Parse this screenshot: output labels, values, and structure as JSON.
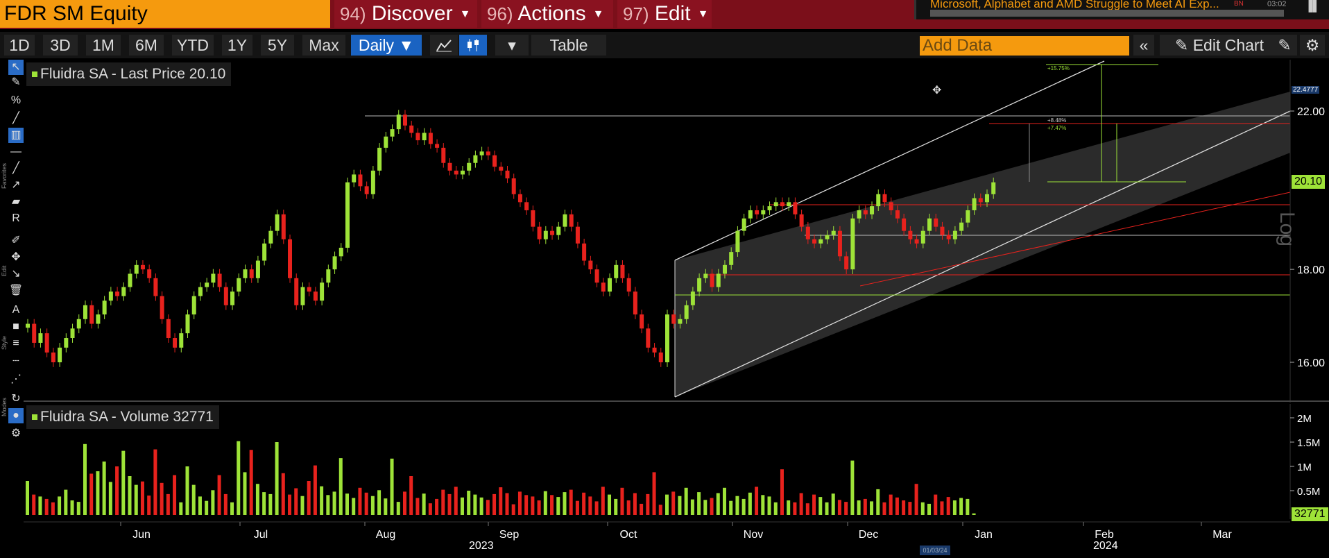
{
  "security": "FDR SM Equity",
  "menus": [
    {
      "num": "94)",
      "label": "Discover"
    },
    {
      "num": "96)",
      "label": "Actions"
    },
    {
      "num": "97)",
      "label": "Edit"
    }
  ],
  "news": {
    "headline": "Microsoft, Alphabet and AMD Struggle to Meet AI Exp...",
    "tag": "BN",
    "time": "03:02"
  },
  "toolbar": {
    "ranges": [
      "1D",
      "3D",
      "1M",
      "6M",
      "YTD",
      "1Y",
      "5Y",
      "Max"
    ],
    "frequency": "Daily ▼",
    "table_label": "Table",
    "add_data_placeholder": "Add Data",
    "edit_chart_label": "Edit Chart"
  },
  "side_labels": {
    "favorites": "Favorites",
    "edit": "Edit",
    "style": "Style",
    "modes": "Modes"
  },
  "price_panel": {
    "legend": "Fluidra SA - Last Price 20.10",
    "last": "20.10",
    "scale_label": "Log",
    "top_label": "22.4777",
    "channel_labels": [
      "+15.75%",
      "+8.48%",
      "+7.47%"
    ]
  },
  "volume_panel": {
    "legend": "Fluidra SA - Volume 32771",
    "last": "32771"
  },
  "x_axis": {
    "months": [
      "Jun",
      "Jul",
      "Aug",
      "Sep",
      "Oct",
      "Nov",
      "Dec",
      "Jan",
      "Feb",
      "Mar"
    ],
    "years": [
      "2023",
      "2024"
    ],
    "cursor_date": "01/03/24"
  },
  "colors": {
    "up": "#9ee338",
    "down": "#e8221d",
    "accent": "#f59a0e",
    "header": "#7b0f1a",
    "active": "#1a63c2"
  },
  "chart_data": {
    "type": "candlestick",
    "scale": "log",
    "y_ticks": [
      16.0,
      18.0,
      22.0
    ],
    "y_tick_labels": [
      "16.00",
      "18.00",
      "22.00"
    ],
    "volume_ticks": [
      500000,
      1000000,
      1500000,
      2000000
    ],
    "volume_tick_labels": [
      "0.5M",
      "1M",
      "1.5M",
      "2M"
    ],
    "series": [
      {
        "name": "Fluidra SA - Last Price",
        "close": [
          16.8,
          16.4,
          16.6,
          16.2,
          16.0,
          16.3,
          16.5,
          16.7,
          16.9,
          17.2,
          16.8,
          17.0,
          17.3,
          17.5,
          17.4,
          17.6,
          17.9,
          18.1,
          18.0,
          17.8,
          17.4,
          16.9,
          16.5,
          16.3,
          16.6,
          17.0,
          17.4,
          17.6,
          17.7,
          17.9,
          17.6,
          17.2,
          17.5,
          17.8,
          18.0,
          17.8,
          18.2,
          18.6,
          18.9,
          19.3,
          18.7,
          17.8,
          17.2,
          17.6,
          17.5,
          17.3,
          17.7,
          18.0,
          18.3,
          18.5,
          20.1,
          20.3,
          20.0,
          19.8,
          20.4,
          21.0,
          21.3,
          21.5,
          21.9,
          21.6,
          21.4,
          21.2,
          21.4,
          21.1,
          21.0,
          20.6,
          20.4,
          20.3,
          20.4,
          20.6,
          20.8,
          20.9,
          20.8,
          20.5,
          20.4,
          20.2,
          19.8,
          19.6,
          19.4,
          19.0,
          18.7,
          18.9,
          18.8,
          19.0,
          19.3,
          19.0,
          18.6,
          18.2,
          18.0,
          17.7,
          17.5,
          17.8,
          18.1,
          17.8,
          17.5,
          17.0,
          16.7,
          16.3,
          16.2,
          16.0,
          17.0,
          16.8,
          16.9,
          17.2,
          17.5,
          17.8,
          17.9,
          17.6,
          17.9,
          18.1,
          18.4,
          18.9,
          19.2,
          19.4,
          19.3,
          19.4,
          19.5,
          19.6,
          19.5,
          19.6,
          19.3,
          19.0,
          18.7,
          18.6,
          18.7,
          18.8,
          18.9,
          18.3,
          18.0,
          19.2,
          19.4,
          19.3,
          19.5,
          19.8,
          19.6,
          19.4,
          19.2,
          18.9,
          18.7,
          18.6,
          18.9,
          19.2,
          19.0,
          18.8,
          18.7,
          18.9,
          19.1,
          19.4,
          19.7,
          19.6,
          19.8,
          20.1
        ]
      },
      {
        "name": "Fluidra SA - Volume",
        "values": [
          700000,
          420000,
          380000,
          330000,
          260000,
          380000,
          520000,
          300000,
          270000,
          1460000,
          850000,
          900000,
          1100000,
          680000,
          1000000,
          1320000,
          800000,
          620000,
          690000,
          400000,
          1350000,
          660000,
          430000,
          820000,
          260000,
          1000000,
          620000,
          380000,
          290000,
          510000,
          820000,
          430000,
          260000,
          1520000,
          880000,
          1340000,
          640000,
          470000,
          430000,
          1500000,
          860000,
          420000,
          550000,
          390000,
          700000,
          1020000,
          590000,
          410000,
          480000,
          1170000,
          440000,
          350000,
          560000,
          460000,
          390000,
          510000,
          340000,
          1160000,
          270000,
          480000,
          800000,
          350000,
          440000,
          240000,
          330000,
          520000,
          430000,
          580000,
          360000,
          500000,
          420000,
          360000,
          310000,
          430000,
          570000,
          450000,
          220000,
          480000,
          410000,
          380000,
          300000,
          490000,
          410000,
          370000,
          470000,
          520000,
          290000,
          460000,
          380000,
          280000,
          580000,
          420000,
          330000,
          560000,
          300000,
          450000,
          230000,
          430000,
          880000,
          210000,
          420000,
          480000,
          390000,
          560000,
          320000,
          470000,
          310000,
          350000,
          450000,
          560000,
          290000,
          390000,
          330000,
          460000,
          580000,
          410000,
          380000,
          260000,
          940000,
          300000,
          260000,
          450000,
          240000,
          420000,
          370000,
          260000,
          440000,
          310000,
          270000,
          1120000,
          300000,
          330000,
          280000,
          530000,
          260000,
          420000,
          360000,
          300000,
          270000,
          640000,
          260000,
          230000,
          420000,
          280000,
          370000,
          300000,
          350000,
          330000,
          32771
        ]
      }
    ]
  }
}
